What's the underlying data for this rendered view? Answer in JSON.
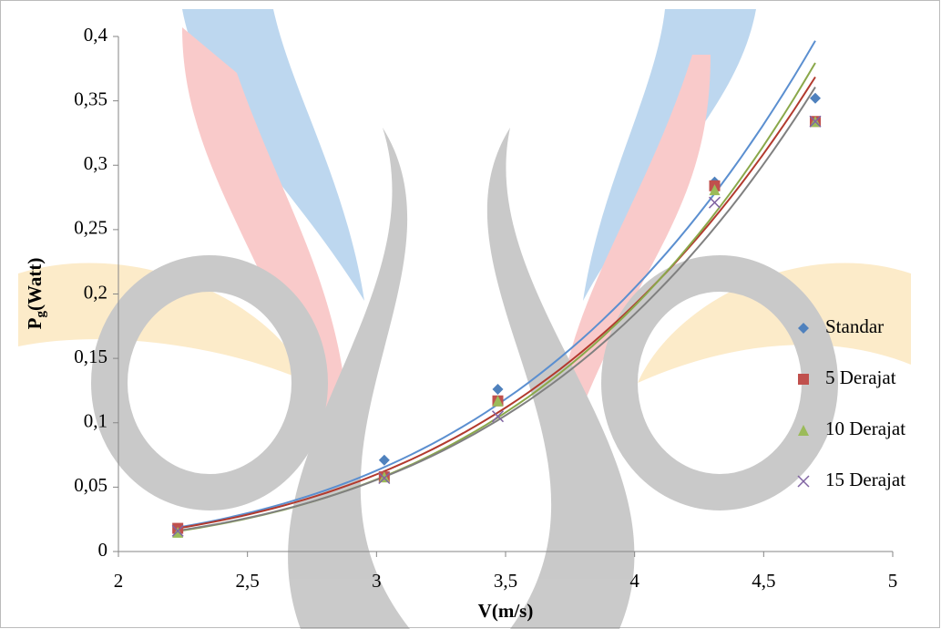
{
  "chart_data": {
    "type": "scatter",
    "xlabel": "V(m/s)",
    "ylabel": [
      "P",
      "g",
      "(Watt)"
    ],
    "xlim": [
      2,
      5
    ],
    "xticks": [
      2,
      {
        "value": 2.5,
        "label": "2,5"
      },
      3,
      {
        "value": 3.5,
        "label": "3,5"
      },
      4,
      {
        "value": 4.5,
        "label": "4,5"
      },
      5
    ],
    "ylim": [
      0,
      0.4
    ],
    "yticks": [
      0,
      {
        "value": 0.05,
        "label": "0,05"
      },
      {
        "value": 0.1,
        "label": "0,1"
      },
      {
        "value": 0.15,
        "label": "0,15"
      },
      {
        "value": 0.2,
        "label": "0,2"
      },
      {
        "value": 0.25,
        "label": "0,25"
      },
      {
        "value": 0.3,
        "label": "0,3"
      },
      {
        "value": 0.35,
        "label": "0,35"
      },
      {
        "value": 0.4,
        "label": "0,4"
      }
    ],
    "trendline": "power",
    "legend": "right",
    "series": [
      {
        "name": "Standar",
        "color": "#4f81bd",
        "line_color": "#5b8fd0",
        "marker": "diamond",
        "x": [
          2.23,
          3.03,
          3.47,
          4.31,
          4.7
        ],
        "values": [
          0.017,
          0.071,
          0.126,
          0.287,
          0.352
        ]
      },
      {
        "name": "5 Derajat",
        "color": "#c0504d",
        "line_color": "#b23a2e",
        "marker": "square",
        "x": [
          2.23,
          3.03,
          3.47,
          4.31,
          4.7
        ],
        "values": [
          0.018,
          0.058,
          0.117,
          0.284,
          0.334
        ]
      },
      {
        "name": "10 Derajat",
        "color": "#9bbb59",
        "line_color": "#8aa84a",
        "marker": "triangle",
        "x": [
          2.23,
          3.03,
          3.47,
          4.31,
          4.7
        ],
        "values": [
          0.015,
          0.058,
          0.117,
          0.281,
          0.334
        ]
      },
      {
        "name": "15 Derajat",
        "color": "#8064a2",
        "line_color": "#808080",
        "marker": "cross",
        "x": [
          2.23,
          3.03,
          3.47,
          4.31,
          4.7
        ],
        "values": [
          0.016,
          0.057,
          0.105,
          0.271,
          0.334
        ]
      }
    ]
  }
}
